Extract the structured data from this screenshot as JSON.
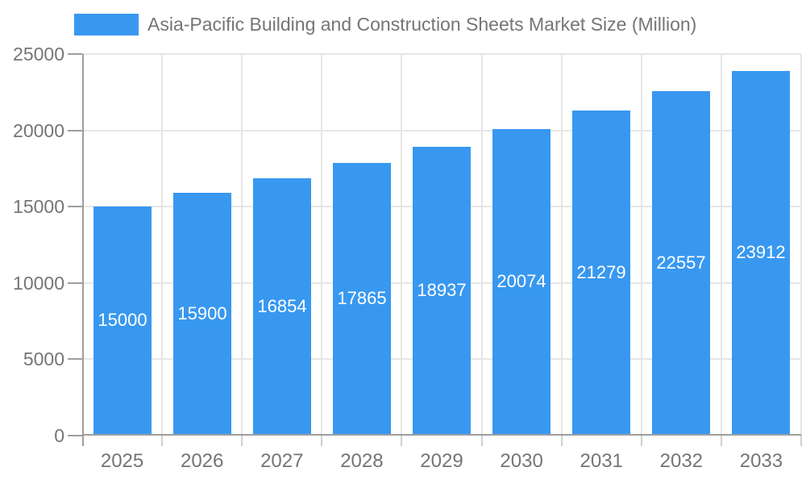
{
  "legend": {
    "label": "Asia-Pacific Building and Construction Sheets Market Size (Million)"
  },
  "chart_data": {
    "type": "bar",
    "title": "Asia-Pacific Building and Construction Sheets Market Size (Million)",
    "categories": [
      "2025",
      "2026",
      "2027",
      "2028",
      "2029",
      "2030",
      "2031",
      "2032",
      "2033"
    ],
    "values": [
      15000,
      15900,
      16854,
      17865,
      18937,
      20074,
      21279,
      22557,
      23912
    ],
    "series": [
      {
        "name": "Asia-Pacific Building and Construction Sheets Market Size (Million)",
        "values": [
          15000,
          15900,
          16854,
          17865,
          18937,
          20074,
          21279,
          22557,
          23912
        ]
      }
    ],
    "xlabel": "",
    "ylabel": "",
    "ylim": [
      0,
      25000
    ],
    "yticks": [
      0,
      5000,
      10000,
      15000,
      20000,
      25000
    ],
    "grid": true,
    "legend_position": "top-left",
    "value_labels": "inside-center",
    "colors": {
      "bar": "#3898f0",
      "axis": "#9e9e9e",
      "grid": "#e6e6e6",
      "tick": "#d0d0d0",
      "text": "#757575",
      "value_label": "#ffffff",
      "background": "#ffffff"
    }
  }
}
